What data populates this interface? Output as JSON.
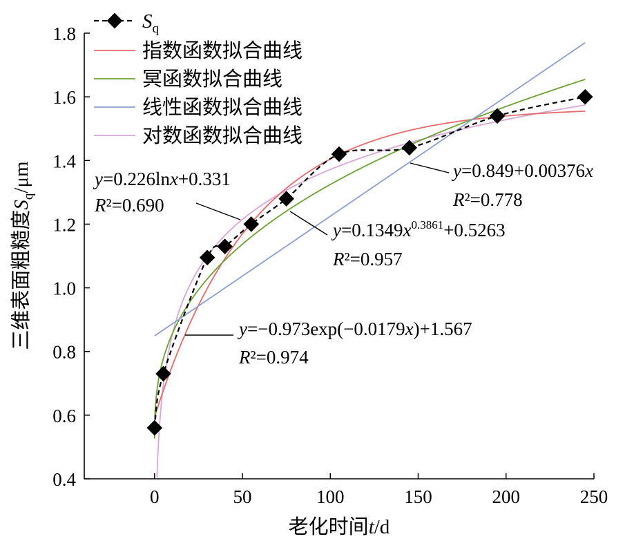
{
  "chart_data": {
    "type": "scatter",
    "xlabel": "老化时间t/d",
    "ylabel": "三维表面粗糙度Sq/μm",
    "xlim": [
      -40,
      250
    ],
    "ylim": [
      0.4,
      1.8
    ],
    "x_ticks": [
      "0",
      "50",
      "100",
      "150",
      "200",
      "250"
    ],
    "y_ticks": [
      "0.4",
      "0.6",
      "0.8",
      "1.0",
      "1.2",
      "1.4",
      "1.6",
      "1.8"
    ],
    "legend_position": "top-left",
    "points": {
      "name": "Sq",
      "x": [
        0,
        5,
        30,
        40,
        55,
        75,
        105,
        145,
        195,
        245
      ],
      "y": [
        0.56,
        0.73,
        1.095,
        1.13,
        1.2,
        1.28,
        1.42,
        1.44,
        1.54,
        1.6
      ]
    },
    "series": [
      {
        "name": "指数函数拟合曲线",
        "key": "exp",
        "color": "#e8696a",
        "equation": "y=−0.973exp(−0.0179x)+1.567",
        "r2": "R²=0.974",
        "params": {
          "a": -0.973,
          "b": -0.0179,
          "c": 1.567
        }
      },
      {
        "name": "冥函数拟合曲线",
        "key": "pow",
        "color": "#6aa233",
        "equation": "y=0.1349x^0.3861+0.5263",
        "r2": "R²=0.957",
        "params": {
          "a": 0.1349,
          "b": 0.3861,
          "c": 0.5263
        }
      },
      {
        "name": "线性函数拟合曲线",
        "key": "lin",
        "color": "#8a9fd0",
        "equation": "y=0.849+0.00376x",
        "r2": "R²=0.778",
        "params": {
          "a": 0.849,
          "b": 0.00376
        }
      },
      {
        "name": "对数函数拟合曲线",
        "key": "log",
        "color": "#d9a6d8",
        "equation": "y=0.226lnx+0.331",
        "r2": "R²=0.690",
        "params": {
          "a": 0.226,
          "c": 0.331
        }
      }
    ]
  }
}
